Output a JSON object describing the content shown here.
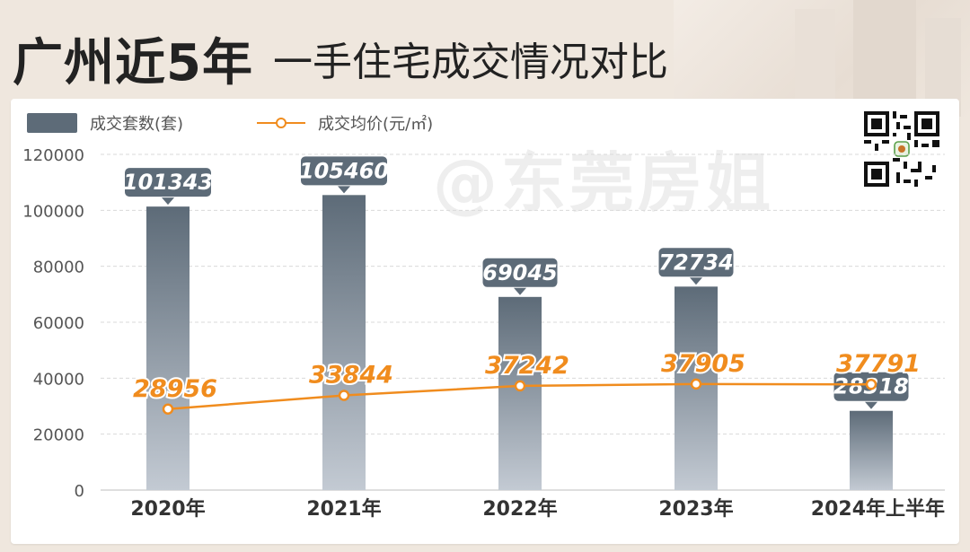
{
  "header": {
    "title_main": "广州近5年",
    "title_sub": "一手住宅成交情况对比"
  },
  "legend": {
    "bar_label": "成交套数(套)",
    "line_label": "成交均价(元/㎡)"
  },
  "watermark": "@东莞房姐",
  "colors": {
    "bar": "#5d6b78",
    "line": "#f08c1e",
    "label_bg": "#5d6b78",
    "line_label": "#f08c1e"
  },
  "chart_data": {
    "type": "bar",
    "categories": [
      "2020年",
      "2021年",
      "2022年",
      "2023年",
      "2024年上半年"
    ],
    "series": [
      {
        "name": "成交套数(套)",
        "type": "bar",
        "values": [
          101343,
          105460,
          69045,
          72734,
          28318
        ]
      },
      {
        "name": "成交均价(元/㎡)",
        "type": "line",
        "values": [
          28956,
          33844,
          37242,
          37905,
          37791
        ]
      }
    ],
    "y_ticks": [
      "0",
      "20000",
      "40000",
      "60000",
      "80000",
      "100000",
      "120000"
    ],
    "ylim": [
      0,
      120000
    ],
    "grid": true,
    "legend_position": "top-left"
  }
}
